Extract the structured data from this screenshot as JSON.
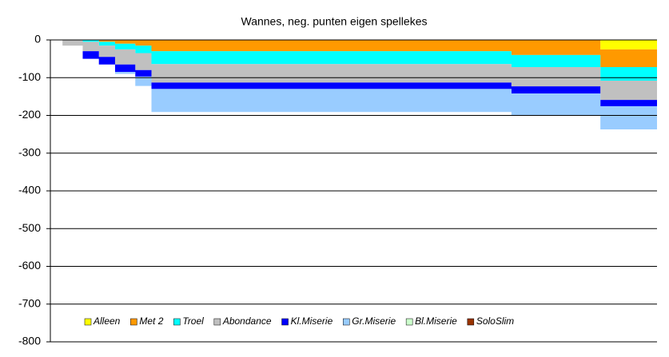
{
  "chart_data": {
    "type": "stacked-area-step",
    "title": "Wannes, neg. punten eigen spellekes",
    "x": [
      0,
      3,
      8,
      12,
      16,
      21,
      25,
      114,
      136,
      150
    ],
    "xlim": [
      0,
      150
    ],
    "ylim": [
      -800,
      0
    ],
    "yticks": [
      0,
      -100,
      -200,
      -300,
      -400,
      -500,
      -600,
      -700,
      -800
    ],
    "grid": true,
    "legend": "bottom",
    "series": [
      {
        "name": "Alleen",
        "color": "#ffff00",
        "values": [
          0,
          0,
          0,
          0,
          0,
          0,
          0,
          0,
          -25,
          -25
        ]
      },
      {
        "name": "Met 2",
        "color": "#ff9900",
        "values": [
          0,
          0,
          0,
          -5,
          -10,
          -15,
          -30,
          -40,
          -47,
          -47
        ]
      },
      {
        "name": "Troel",
        "color": "#00ffff",
        "values": [
          0,
          0,
          -5,
          -10,
          -15,
          -20,
          -34,
          -32,
          -36,
          -36
        ]
      },
      {
        "name": "Abondance",
        "color": "#c0c0c0",
        "values": [
          0,
          -15,
          -25,
          -30,
          -40,
          -45,
          -49,
          -51,
          -51,
          -51
        ]
      },
      {
        "name": "Kl.Miserie",
        "color": "#0000ff",
        "values": [
          0,
          0,
          -20,
          -20,
          -20,
          -17,
          -17,
          -19,
          -17,
          -17
        ]
      },
      {
        "name": "Gr.Miserie",
        "color": "#99ccff",
        "values": [
          0,
          0,
          0,
          0,
          -5,
          -25,
          -61,
          -59,
          -61,
          -61
        ]
      },
      {
        "name": "Bl.Miserie",
        "color": "#ccffcc",
        "values": [
          0,
          0,
          0,
          0,
          0,
          0,
          0,
          0,
          0,
          0
        ]
      },
      {
        "name": "SoloSlim",
        "color": "#993300",
        "values": [
          0,
          0,
          0,
          0,
          0,
          0,
          0,
          0,
          0,
          0
        ]
      }
    ]
  }
}
